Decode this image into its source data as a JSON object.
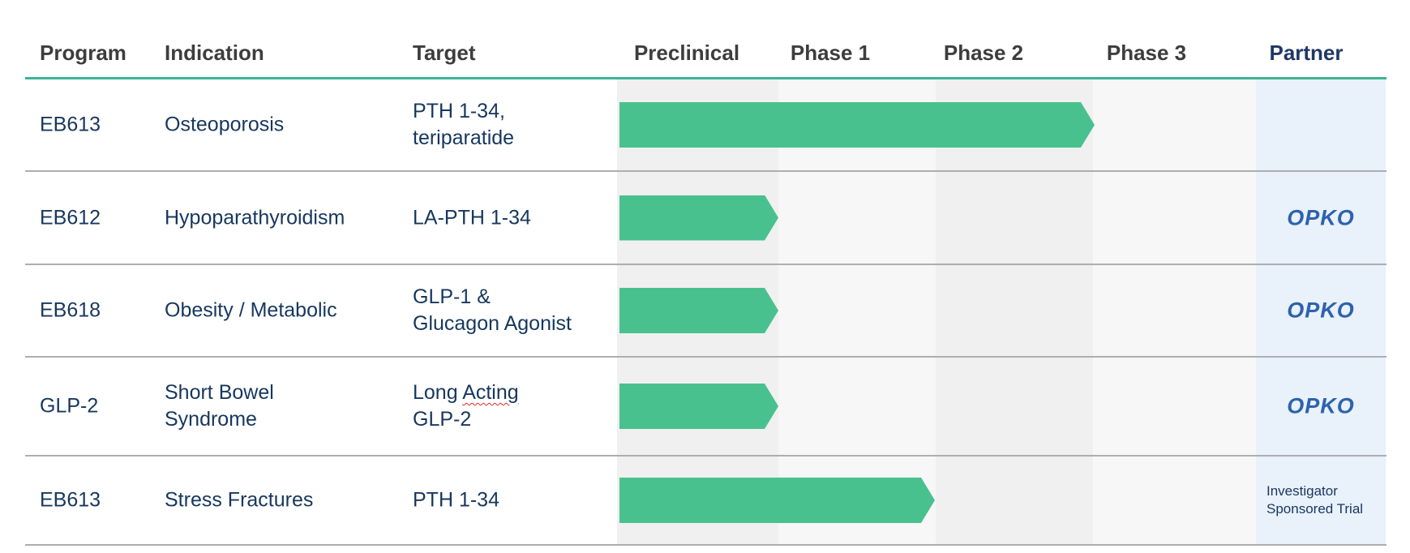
{
  "colors": {
    "accent_teal": "#3cb495",
    "bar_green": "#49c18e",
    "body_navy": "#17375e",
    "header_gray": "#3d3d3d",
    "partner_navy": "#1f3864",
    "partner_bg": "#e9f1fb",
    "col_gray": "#f0f0f0",
    "col_light": "#f7f7f7",
    "separator_gray": "#aeaeae",
    "opko_blue": "#2d62ae",
    "squiggle_red": "#dd2b2b"
  },
  "header": {
    "program": "Program",
    "indication": "Indication",
    "target": "Target",
    "preclinical": "Preclinical",
    "phase1": "Phase 1",
    "phase2": "Phase 2",
    "phase3": "Phase 3",
    "partner": "Partner"
  },
  "rows": [
    {
      "program": "EB613",
      "indication": "Osteoporosis",
      "target": "PTH 1-34,\nteriparatide",
      "partner": "",
      "progress_units": 3
    },
    {
      "program": "EB612",
      "indication": "Hypoparathyroidism",
      "target": "LA-PTH 1-34",
      "partner": "OPKO",
      "progress_units": 1
    },
    {
      "program": "EB618",
      "indication": "Obesity / Metabolic",
      "target": "GLP-1 &\nGlucagon Agonist",
      "partner": "OPKO",
      "progress_units": 1
    },
    {
      "program": "GLP-2",
      "indication": "Short Bowel\nSyndrome",
      "target_parts": {
        "pre": "Long ",
        "misspelled": "Acting",
        "line2": "GLP-2"
      },
      "partner": "OPKO",
      "progress_units": 1
    },
    {
      "program": "EB613",
      "indication": "Stress Fractures",
      "target": "PTH 1-34",
      "partner": "Investigator Sponsored Trial",
      "progress_units": 2
    }
  ],
  "chart_data": {
    "type": "table",
    "title": "",
    "columns": [
      "Program",
      "Indication",
      "Target",
      "Preclinical",
      "Phase 1",
      "Phase 2",
      "Phase 3",
      "Partner"
    ],
    "phase_axis": [
      "Preclinical",
      "Phase 1",
      "Phase 2",
      "Phase 3"
    ],
    "bar_style": "right-pointing green arrow starting at Preclinical",
    "rows": [
      {
        "program": "EB613",
        "indication": "Osteoporosis",
        "target": "PTH 1-34, teriparatide",
        "phases_reached": 3,
        "progress_label": "through end of Phase 2",
        "partner": ""
      },
      {
        "program": "EB612",
        "indication": "Hypoparathyroidism",
        "target": "LA-PTH 1-34",
        "phases_reached": 1,
        "progress_label": "through end of Preclinical",
        "partner": "OPKO"
      },
      {
        "program": "EB618",
        "indication": "Obesity / Metabolic",
        "target": "GLP-1 & Glucagon Agonist",
        "phases_reached": 1,
        "progress_label": "through end of Preclinical",
        "partner": "OPKO"
      },
      {
        "program": "GLP-2",
        "indication": "Short Bowel Syndrome",
        "target": "Long Acting GLP-2",
        "phases_reached": 1,
        "progress_label": "through end of Preclinical",
        "partner": "OPKO"
      },
      {
        "program": "EB613",
        "indication": "Stress Fractures",
        "target": "PTH 1-34",
        "phases_reached": 2,
        "progress_label": "through end of Phase 1",
        "partner": "Investigator Sponsored Trial"
      }
    ]
  }
}
